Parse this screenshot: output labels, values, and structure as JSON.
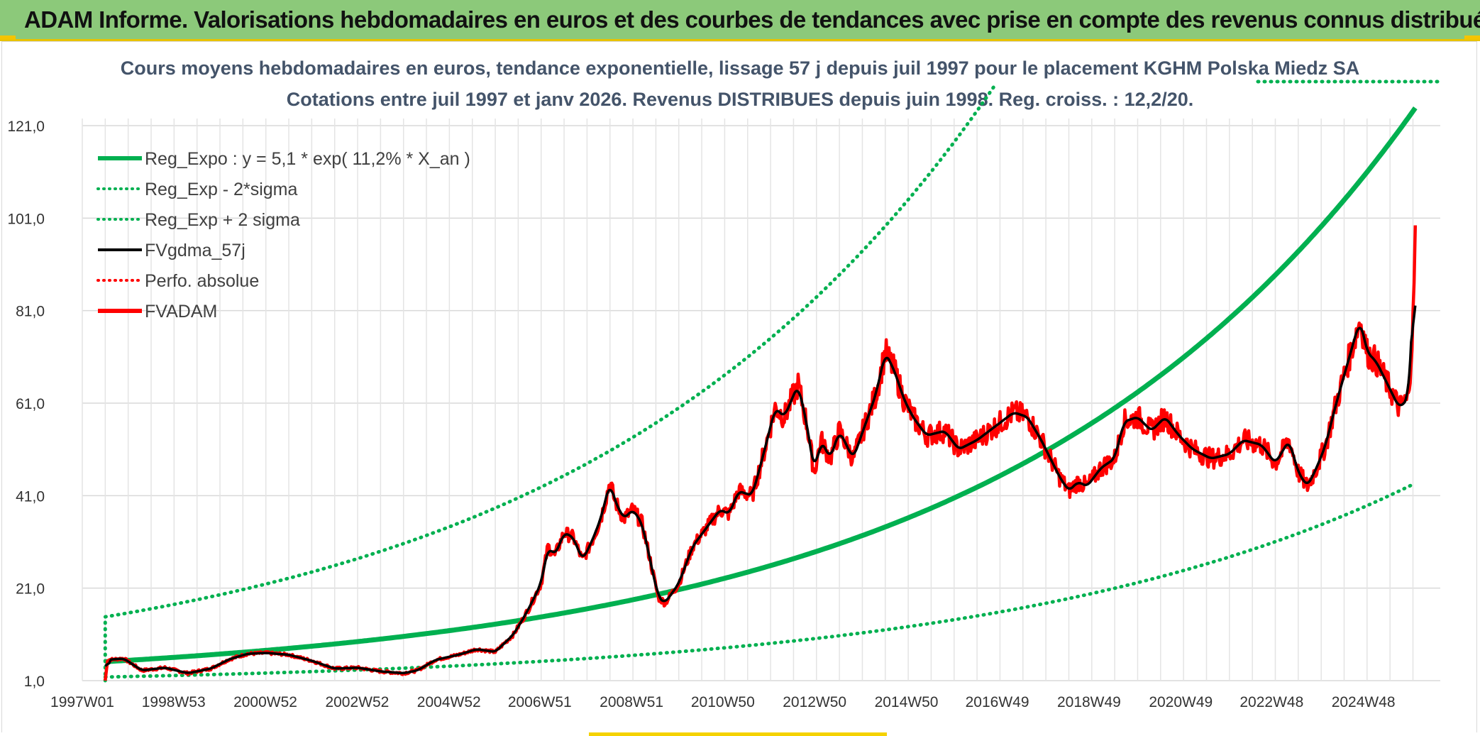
{
  "header": {
    "title": "ADAM Informe. Valorisations hebdomadaires en euros et des courbes de tendances avec prise en compte des revenus connus distribués"
  },
  "colors": {
    "header_bg": "#8cc97a",
    "green": "#00b050",
    "black": "#000000",
    "red": "#ff0000",
    "grid": "#d9d9d9"
  },
  "chart_data": {
    "type": "line",
    "title_line1": "Cours moyens hebdomadaires en euros, tendance exponentielle, lissage 57 j depuis juil 1997 pour le placement KGHM Polska Miedz SA",
    "title_line2": "Cotations entre juil 1997 et janv 2026. Revenus DISTRIBUES depuis juin 1998. Reg. croiss. : 12,2/20.",
    "x_range_years": [
      1997.0,
      2025.5
    ],
    "data_start_year": 1997.5,
    "data_end_year": 2026.05,
    "ylim": [
      1.0,
      121.0
    ],
    "y_ticks": [
      "1,0",
      "21,0",
      "41,0",
      "61,0",
      "81,0",
      "101,0",
      "121,0"
    ],
    "y_tick_values": [
      1,
      21,
      41,
      61,
      81,
      101,
      121
    ],
    "x_ticks": [
      {
        "label": "1997W01",
        "year": 1997.0
      },
      {
        "label": "1998W53",
        "year": 1998.99
      },
      {
        "label": "2000W52",
        "year": 2000.99
      },
      {
        "label": "2002W52",
        "year": 2002.99
      },
      {
        "label": "2004W52",
        "year": 2004.99
      },
      {
        "label": "2006W51",
        "year": 2006.97
      },
      {
        "label": "2008W51",
        "year": 2008.97
      },
      {
        "label": "2010W50",
        "year": 2010.96
      },
      {
        "label": "2012W50",
        "year": 2012.96
      },
      {
        "label": "2014W50",
        "year": 2014.96
      },
      {
        "label": "2016W49",
        "year": 2016.94
      },
      {
        "label": "2018W49",
        "year": 2018.94
      },
      {
        "label": "2020W49",
        "year": 2020.94
      },
      {
        "label": "2022W48",
        "year": 2022.92
      },
      {
        "label": "2024W48",
        "year": 2024.92
      }
    ],
    "regression": {
      "a": 5.1,
      "rate": 0.112,
      "sigma_factor_low": 0.35,
      "sigma_factor_high": 2.9
    },
    "series": [
      {
        "name": "Reg_Expo : y = 5,1 * exp( 11,2% *  X_an )",
        "color": "#00b050",
        "style": "solid-thick"
      },
      {
        "name": "Reg_Exp - 2*sigma",
        "color": "#00b050",
        "style": "dotted"
      },
      {
        "name": "Reg_Exp + 2 sigma",
        "color": "#00b050",
        "style": "dotted"
      },
      {
        "name": "FVgdma_57j",
        "color": "#000000",
        "style": "solid"
      },
      {
        "name": "Perfo. absolue",
        "color": "#ff0000",
        "style": "dotted"
      },
      {
        "name": "FVADAM",
        "color": "#ff0000",
        "style": "solid-thick"
      }
    ],
    "fvadam_points": [
      [
        1997.5,
        1.0
      ],
      [
        1997.55,
        5.5
      ],
      [
        1997.9,
        5.8
      ],
      [
        1998.3,
        3.2
      ],
      [
        1998.8,
        3.8
      ],
      [
        1999.3,
        2.6
      ],
      [
        1999.8,
        3.6
      ],
      [
        2000.2,
        5.6
      ],
      [
        2000.6,
        6.8
      ],
      [
        2001.0,
        7.0
      ],
      [
        2001.5,
        6.6
      ],
      [
        2002.0,
        5.3
      ],
      [
        2002.5,
        3.6
      ],
      [
        2003.0,
        3.8
      ],
      [
        2003.5,
        3.0
      ],
      [
        2004.0,
        2.6
      ],
      [
        2004.3,
        3.2
      ],
      [
        2004.7,
        5.5
      ],
      [
        2005.2,
        6.6
      ],
      [
        2005.6,
        7.8
      ],
      [
        2006.0,
        7.2
      ],
      [
        2006.4,
        11.0
      ],
      [
        2006.7,
        16.0
      ],
      [
        2007.0,
        22.0
      ],
      [
        2007.15,
        30.0
      ],
      [
        2007.3,
        28.0
      ],
      [
        2007.5,
        33.0
      ],
      [
        2007.7,
        32.0
      ],
      [
        2007.9,
        27.0
      ],
      [
        2008.1,
        31.0
      ],
      [
        2008.3,
        36.0
      ],
      [
        2008.5,
        44.0
      ],
      [
        2008.6,
        40.0
      ],
      [
        2008.8,
        36.0
      ],
      [
        2009.0,
        38.0
      ],
      [
        2009.2,
        35.0
      ],
      [
        2009.4,
        26.0
      ],
      [
        2009.55,
        19.0
      ],
      [
        2009.7,
        17.8
      ],
      [
        2010.0,
        22.0
      ],
      [
        2010.3,
        30.0
      ],
      [
        2010.6,
        34.0
      ],
      [
        2010.9,
        38.0
      ],
      [
        2011.1,
        37.0
      ],
      [
        2011.3,
        42.0
      ],
      [
        2011.6,
        41.0
      ],
      [
        2011.9,
        52.0
      ],
      [
        2012.1,
        60.0
      ],
      [
        2012.3,
        58.0
      ],
      [
        2012.6,
        65.0
      ],
      [
        2012.8,
        56.0
      ],
      [
        2012.95,
        46.0
      ],
      [
        2013.1,
        53.0
      ],
      [
        2013.3,
        49.0
      ],
      [
        2013.5,
        55.0
      ],
      [
        2013.8,
        49.0
      ],
      [
        2014.05,
        56.0
      ],
      [
        2014.3,
        63.0
      ],
      [
        2014.5,
        72.0
      ],
      [
        2014.7,
        68.0
      ],
      [
        2014.9,
        62.0
      ],
      [
        2015.1,
        58.0
      ],
      [
        2015.4,
        54.0
      ],
      [
        2015.8,
        55.0
      ],
      [
        2016.1,
        51.0
      ],
      [
        2016.5,
        53.0
      ],
      [
        2016.9,
        56.0
      ],
      [
        2017.3,
        59.0
      ],
      [
        2017.6,
        58.0
      ],
      [
        2017.9,
        53.0
      ],
      [
        2018.1,
        49.0
      ],
      [
        2018.3,
        45.0
      ],
      [
        2018.5,
        42.0
      ],
      [
        2018.7,
        44.0
      ],
      [
        2018.9,
        43.0
      ],
      [
        2019.2,
        47.0
      ],
      [
        2019.5,
        49.0
      ],
      [
        2019.7,
        57.0
      ],
      [
        2020.0,
        58.0
      ],
      [
        2020.3,
        55.0
      ],
      [
        2020.6,
        58.0
      ],
      [
        2020.9,
        54.0
      ],
      [
        2021.2,
        51.0
      ],
      [
        2021.6,
        49.0
      ],
      [
        2022.0,
        50.0
      ],
      [
        2022.3,
        53.0
      ],
      [
        2022.7,
        52.0
      ],
      [
        2023.0,
        48.0
      ],
      [
        2023.3,
        53.0
      ],
      [
        2023.5,
        46.0
      ],
      [
        2023.7,
        43.0
      ],
      [
        2023.9,
        47.0
      ],
      [
        2024.1,
        52.0
      ],
      [
        2024.3,
        60.0
      ],
      [
        2024.5,
        67.0
      ],
      [
        2024.7,
        74.0
      ],
      [
        2024.85,
        79.0
      ],
      [
        2025.0,
        72.0
      ],
      [
        2025.2,
        70.0
      ],
      [
        2025.5,
        64.0
      ],
      [
        2025.7,
        60.0
      ],
      [
        2025.9,
        62.0
      ],
      [
        2026.0,
        78.0
      ],
      [
        2026.05,
        98.0
      ]
    ]
  }
}
